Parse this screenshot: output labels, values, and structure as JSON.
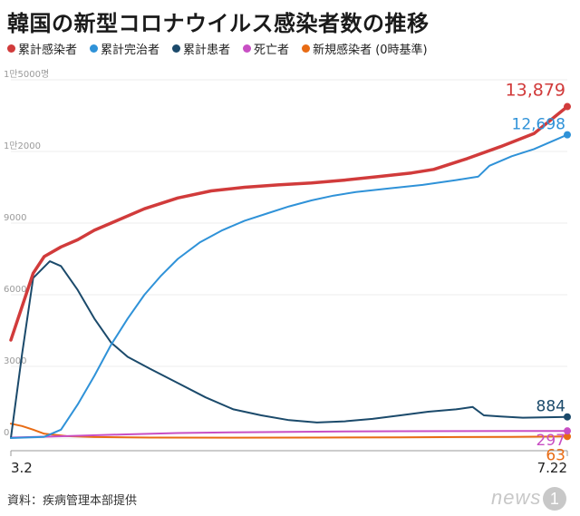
{
  "title": "韓国の新型コロナウイルス感染者数の推移",
  "source": "資料：疾病管理本部提供",
  "logo": {
    "text": "news",
    "mark": "1"
  },
  "chart_data": {
    "type": "line",
    "x_labels": [
      "3.2",
      "7.22"
    ],
    "y_ticks": [
      "1만5000명",
      "1만2000",
      "9000",
      "6000",
      "3000",
      "0"
    ],
    "y_tick_values": [
      15000,
      12000,
      9000,
      6000,
      3000,
      0
    ],
    "ylim": [
      0,
      15000
    ],
    "grid": true,
    "legend_position": "top-left",
    "series": [
      {
        "name": "累計感染者",
        "color": "#d13b3b",
        "end_label": "13,879",
        "points": [
          [
            0,
            4100
          ],
          [
            0.02,
            5500
          ],
          [
            0.04,
            6900
          ],
          [
            0.06,
            7600
          ],
          [
            0.09,
            8000
          ],
          [
            0.12,
            8300
          ],
          [
            0.15,
            8700
          ],
          [
            0.19,
            9100
          ],
          [
            0.24,
            9600
          ],
          [
            0.3,
            10050
          ],
          [
            0.36,
            10350
          ],
          [
            0.42,
            10500
          ],
          [
            0.48,
            10600
          ],
          [
            0.54,
            10680
          ],
          [
            0.6,
            10800
          ],
          [
            0.66,
            10950
          ],
          [
            0.72,
            11100
          ],
          [
            0.76,
            11250
          ],
          [
            0.82,
            11700
          ],
          [
            0.88,
            12200
          ],
          [
            0.94,
            12750
          ],
          [
            1,
            13879
          ]
        ]
      },
      {
        "name": "累計完治者",
        "color": "#2f92d8",
        "end_label": "12,698",
        "points": [
          [
            0,
            0
          ],
          [
            0.06,
            50
          ],
          [
            0.09,
            350
          ],
          [
            0.12,
            1400
          ],
          [
            0.15,
            2600
          ],
          [
            0.18,
            3900
          ],
          [
            0.21,
            5000
          ],
          [
            0.24,
            6000
          ],
          [
            0.27,
            6800
          ],
          [
            0.3,
            7500
          ],
          [
            0.34,
            8200
          ],
          [
            0.38,
            8700
          ],
          [
            0.42,
            9100
          ],
          [
            0.46,
            9400
          ],
          [
            0.5,
            9700
          ],
          [
            0.54,
            9950
          ],
          [
            0.58,
            10150
          ],
          [
            0.62,
            10300
          ],
          [
            0.68,
            10450
          ],
          [
            0.74,
            10600
          ],
          [
            0.8,
            10800
          ],
          [
            0.84,
            10950
          ],
          [
            0.86,
            11400
          ],
          [
            0.9,
            11800
          ],
          [
            0.94,
            12100
          ],
          [
            1,
            12698
          ]
        ]
      },
      {
        "name": "累計患者",
        "color": "#1b4a6b",
        "end_label": "884",
        "points": [
          [
            0,
            0
          ],
          [
            0.02,
            3500
          ],
          [
            0.04,
            6700
          ],
          [
            0.07,
            7400
          ],
          [
            0.09,
            7200
          ],
          [
            0.12,
            6200
          ],
          [
            0.15,
            5000
          ],
          [
            0.18,
            4000
          ],
          [
            0.21,
            3400
          ],
          [
            0.25,
            2900
          ],
          [
            0.3,
            2300
          ],
          [
            0.35,
            1700
          ],
          [
            0.4,
            1200
          ],
          [
            0.45,
            950
          ],
          [
            0.5,
            750
          ],
          [
            0.55,
            650
          ],
          [
            0.6,
            700
          ],
          [
            0.65,
            800
          ],
          [
            0.7,
            950
          ],
          [
            0.75,
            1100
          ],
          [
            0.8,
            1200
          ],
          [
            0.83,
            1300
          ],
          [
            0.85,
            950
          ],
          [
            0.88,
            900
          ],
          [
            0.92,
            850
          ],
          [
            1,
            884
          ]
        ]
      },
      {
        "name": "死亡者",
        "color": "#c84fc4",
        "end_label": "297",
        "points": [
          [
            0,
            20
          ],
          [
            0.1,
            80
          ],
          [
            0.2,
            150
          ],
          [
            0.3,
            210
          ],
          [
            0.4,
            240
          ],
          [
            0.5,
            260
          ],
          [
            0.6,
            275
          ],
          [
            0.7,
            285
          ],
          [
            0.8,
            290
          ],
          [
            0.9,
            294
          ],
          [
            1,
            297
          ]
        ]
      },
      {
        "name": "新規感染者 (0時基準)",
        "color": "#e86b14",
        "end_label": "63",
        "points": [
          [
            0,
            600
          ],
          [
            0.02,
            500
          ],
          [
            0.04,
            350
          ],
          [
            0.06,
            180
          ],
          [
            0.1,
            80
          ],
          [
            0.15,
            40
          ],
          [
            0.25,
            20
          ],
          [
            0.4,
            15
          ],
          [
            0.55,
            20
          ],
          [
            0.7,
            30
          ],
          [
            0.82,
            40
          ],
          [
            0.9,
            45
          ],
          [
            1,
            63
          ]
        ]
      }
    ]
  }
}
